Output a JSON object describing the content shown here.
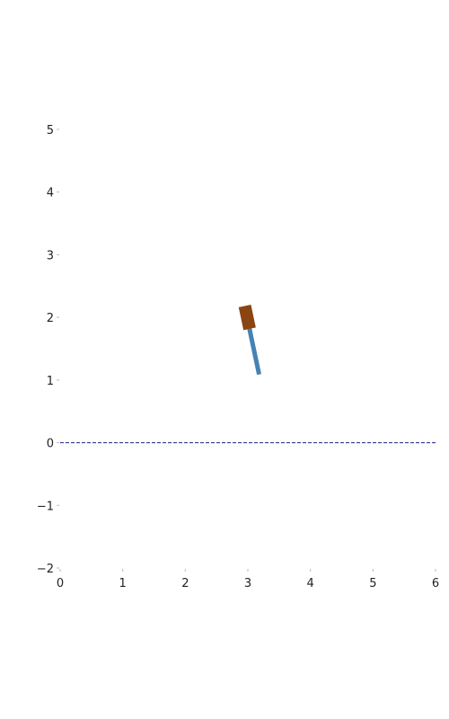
{
  "plot": {
    "x_range": [
      0,
      6
    ],
    "y_range": [
      -2,
      5
    ],
    "x_ticks": [
      0,
      1,
      2,
      3,
      4,
      5,
      6
    ],
    "y_ticks": [
      -2,
      -1,
      0,
      1,
      2,
      3,
      4,
      5
    ],
    "x_tick_labels": [
      "0",
      "1",
      "2",
      "3",
      "4",
      "5",
      "6"
    ],
    "y_tick_labels": [
      "−2",
      "−1",
      "0",
      "1",
      "2",
      "3",
      "4",
      "5"
    ],
    "grid": false
  },
  "ground": {
    "y": 0,
    "style": "dashed",
    "color": "#1a237e"
  },
  "pole": {
    "base": [
      3.18,
      1.09
    ],
    "tip": [
      3.0,
      1.94
    ],
    "color": "#4682b4"
  },
  "bob": {
    "center": [
      2.99,
      2.0
    ],
    "angle_deg": -12,
    "color": "#8b4513"
  }
}
